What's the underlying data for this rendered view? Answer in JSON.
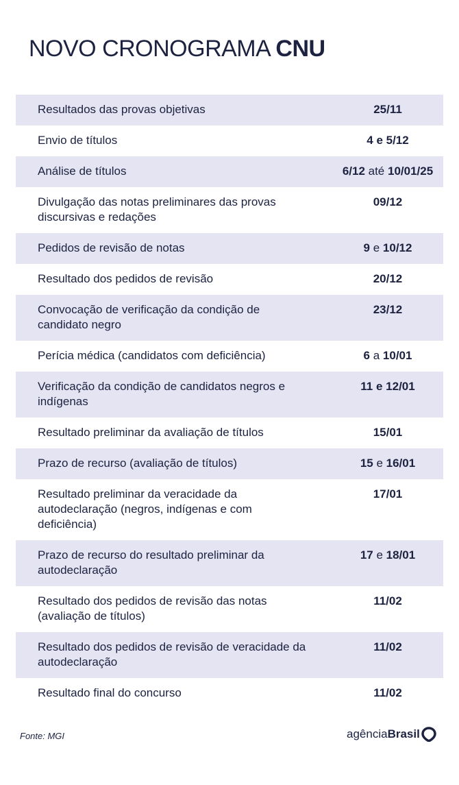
{
  "header": {
    "title_regular": "NOVO CRONOGRAMA",
    "title_bold": "CNU"
  },
  "schedule": [
    {
      "event": "Resultados das provas objetivas",
      "date": [
        {
          "t": "25/11",
          "bold": true
        }
      ]
    },
    {
      "event": "Envio de títulos",
      "date": [
        {
          "t": "4 e 5/12",
          "bold": true
        }
      ]
    },
    {
      "event": "Análise de títulos",
      "date": [
        {
          "t": "6/12",
          "bold": true
        },
        {
          "t": " até ",
          "bold": false
        },
        {
          "t": "10/01/25",
          "bold": true
        }
      ]
    },
    {
      "event": "Divulgação das notas preliminares das provas discursivas e redações",
      "date": [
        {
          "t": "09/12",
          "bold": true
        }
      ]
    },
    {
      "event": "Pedidos de revisão de notas",
      "date": [
        {
          "t": "9",
          "bold": true
        },
        {
          "t": " e ",
          "bold": false
        },
        {
          "t": "10/12",
          "bold": true
        }
      ]
    },
    {
      "event": "Resultado dos pedidos de revisão",
      "date": [
        {
          "t": "20/12",
          "bold": true
        }
      ]
    },
    {
      "event": "Convocação de verificação da condição de candidato negro",
      "date": [
        {
          "t": "23/12",
          "bold": true
        }
      ]
    },
    {
      "event": "Perícia médica (candidatos com deficiência)",
      "date": [
        {
          "t": "6",
          "bold": true
        },
        {
          "t": " a ",
          "bold": false
        },
        {
          "t": "10/01",
          "bold": true
        }
      ]
    },
    {
      "event": "Verificação da condição de candidatos negros e indígenas",
      "date": [
        {
          "t": "11 e 12/01",
          "bold": true
        }
      ]
    },
    {
      "event": "Resultado preliminar da avaliação de títulos",
      "date": [
        {
          "t": "15/01",
          "bold": true
        }
      ]
    },
    {
      "event": "Prazo de recurso (avaliação de títulos)",
      "date": [
        {
          "t": "15",
          "bold": true
        },
        {
          "t": " e ",
          "bold": false
        },
        {
          "t": "16/01",
          "bold": true
        }
      ]
    },
    {
      "event": "Resultado preliminar da veracidade da autodeclaração (negros, indígenas e com deficiência)",
      "date": [
        {
          "t": "17/01",
          "bold": true
        }
      ]
    },
    {
      "event": "Prazo de recurso do resultado preliminar da autodeclaração",
      "date": [
        {
          "t": "17",
          "bold": true
        },
        {
          "t": " e ",
          "bold": false
        },
        {
          "t": "18/01",
          "bold": true
        }
      ]
    },
    {
      "event": "Resultado dos pedidos de revisão das notas (avaliação de títulos)",
      "date": [
        {
          "t": "11/02",
          "bold": true
        }
      ]
    },
    {
      "event": "Resultado dos pedidos de revisão de veracidade da autodeclaração",
      "date": [
        {
          "t": "11/02",
          "bold": true
        }
      ]
    },
    {
      "event": "Resultado final do concurso",
      "date": [
        {
          "t": "11/02",
          "bold": true
        }
      ]
    }
  ],
  "footer": {
    "source": "Fonte:  MGI",
    "logo_regular": "agência",
    "logo_bold": "Brasil",
    "logo_icon": "map-pin-icon"
  },
  "colors": {
    "text": "#1c2240",
    "row_shade": "#e4e4f2"
  }
}
